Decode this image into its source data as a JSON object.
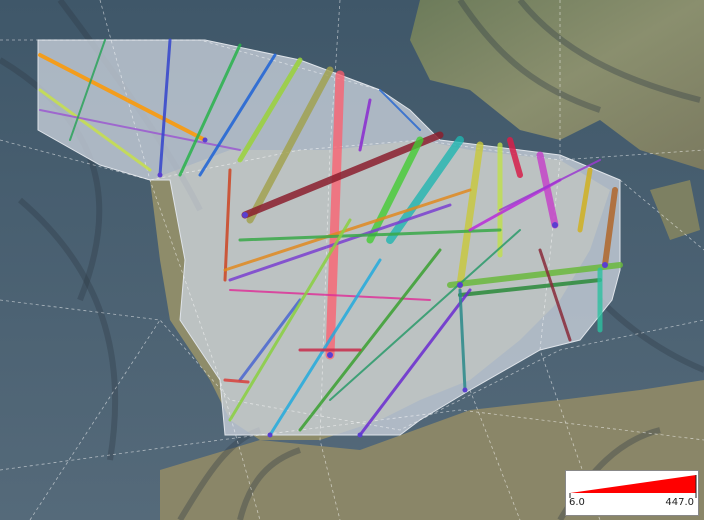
{
  "legend": {
    "min_label": "6.0",
    "max_label": "447.0",
    "ramp_color": "#ff0000"
  },
  "map": {
    "basemap": "satellite-terrain",
    "region_fill": "#c9d1db",
    "graticule_color": "#ffffff"
  }
}
